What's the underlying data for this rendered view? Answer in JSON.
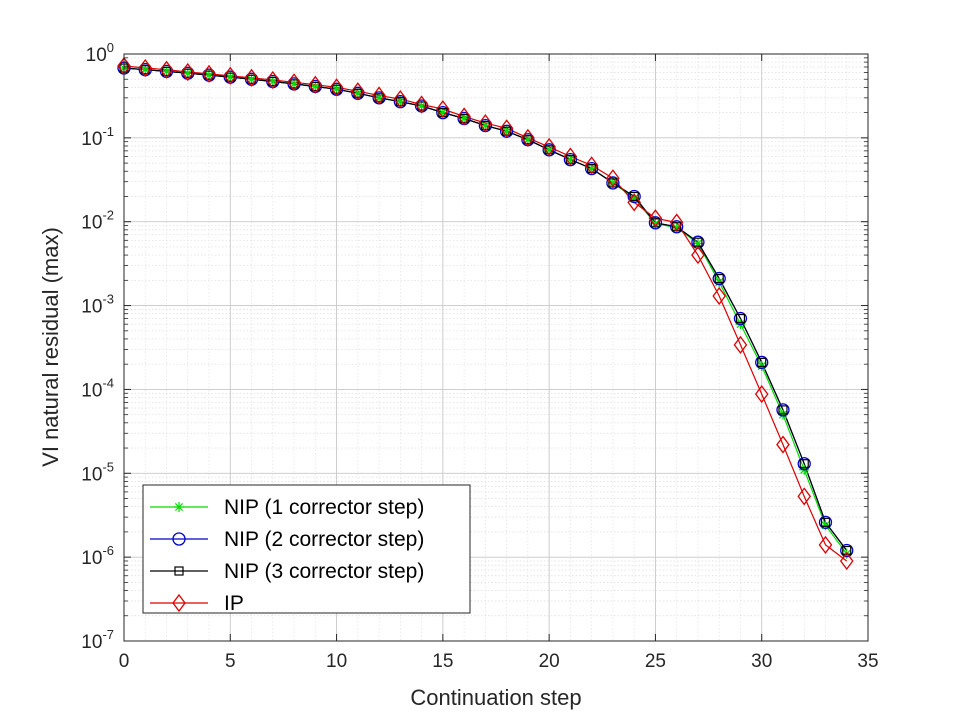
{
  "chart_data": {
    "type": "line",
    "xlabel": "Continuation step",
    "ylabel": "VI natural residual (max)",
    "xlim": [
      0,
      35
    ],
    "ylim": [
      1e-07,
      1
    ],
    "yscale": "log",
    "grid": true,
    "minor_grid": true,
    "legend_position": "bottom-left",
    "x_ticks": [
      "0",
      "5",
      "10",
      "15",
      "20",
      "25",
      "30",
      "35"
    ],
    "y_ticks": [
      {
        "base": "10",
        "exp": "0"
      },
      {
        "base": "10",
        "exp": "-1"
      },
      {
        "base": "10",
        "exp": "-2"
      },
      {
        "base": "10",
        "exp": "-3"
      },
      {
        "base": "10",
        "exp": "-4"
      },
      {
        "base": "10",
        "exp": "-5"
      },
      {
        "base": "10",
        "exp": "-6"
      },
      {
        "base": "10",
        "exp": "-7"
      }
    ],
    "x": [
      0,
      1,
      2,
      3,
      4,
      5,
      6,
      7,
      8,
      9,
      10,
      11,
      12,
      13,
      14,
      15,
      16,
      17,
      18,
      19,
      20,
      21,
      22,
      23,
      24,
      25,
      26,
      27,
      28,
      29,
      30,
      31,
      32,
      33,
      34
    ],
    "series": [
      {
        "name": "NIP (1 corrector step)",
        "color": "#00dd00",
        "marker": "asterisk",
        "values": [
          0.68,
          0.65,
          0.62,
          0.59,
          0.56,
          0.53,
          0.5,
          0.47,
          0.44,
          0.41,
          0.38,
          0.34,
          0.3,
          0.27,
          0.24,
          0.2,
          0.17,
          0.14,
          0.12,
          0.095,
          0.072,
          0.055,
          0.043,
          0.029,
          0.019,
          0.0095,
          0.0085,
          0.0055,
          0.0019,
          0.0006,
          0.00019,
          5e-05,
          1.1e-05,
          2.4e-06,
          1.1e-06
        ]
      },
      {
        "name": "NIP (2 corrector step)",
        "color": "#0000cc",
        "marker": "circle",
        "values": [
          0.68,
          0.65,
          0.62,
          0.59,
          0.56,
          0.53,
          0.5,
          0.47,
          0.44,
          0.41,
          0.38,
          0.34,
          0.3,
          0.27,
          0.24,
          0.2,
          0.17,
          0.14,
          0.12,
          0.095,
          0.072,
          0.055,
          0.043,
          0.029,
          0.02,
          0.0097,
          0.0087,
          0.0057,
          0.0021,
          0.0007,
          0.00021,
          5.7e-05,
          1.3e-05,
          2.6e-06,
          1.2e-06
        ]
      },
      {
        "name": "NIP (3 corrector step)",
        "color": "#000000",
        "marker": "square",
        "values": [
          0.68,
          0.65,
          0.62,
          0.59,
          0.56,
          0.53,
          0.5,
          0.47,
          0.44,
          0.41,
          0.38,
          0.34,
          0.3,
          0.27,
          0.24,
          0.2,
          0.17,
          0.14,
          0.12,
          0.095,
          0.072,
          0.055,
          0.043,
          0.029,
          0.02,
          0.0097,
          0.0087,
          0.0057,
          0.0021,
          0.0007,
          0.00021,
          5.7e-05,
          1.3e-05,
          2.6e-06,
          1.2e-06
        ]
      },
      {
        "name": "IP",
        "color": "#dd0000",
        "marker": "diamond",
        "values": [
          0.72,
          0.68,
          0.65,
          0.61,
          0.58,
          0.55,
          0.52,
          0.49,
          0.46,
          0.43,
          0.4,
          0.36,
          0.32,
          0.29,
          0.25,
          0.22,
          0.18,
          0.15,
          0.13,
          0.1,
          0.078,
          0.06,
          0.047,
          0.033,
          0.017,
          0.011,
          0.0098,
          0.004,
          0.0013,
          0.00034,
          8.8e-05,
          2.2e-05,
          5.3e-06,
          1.4e-06,
          9e-07
        ]
      }
    ]
  }
}
